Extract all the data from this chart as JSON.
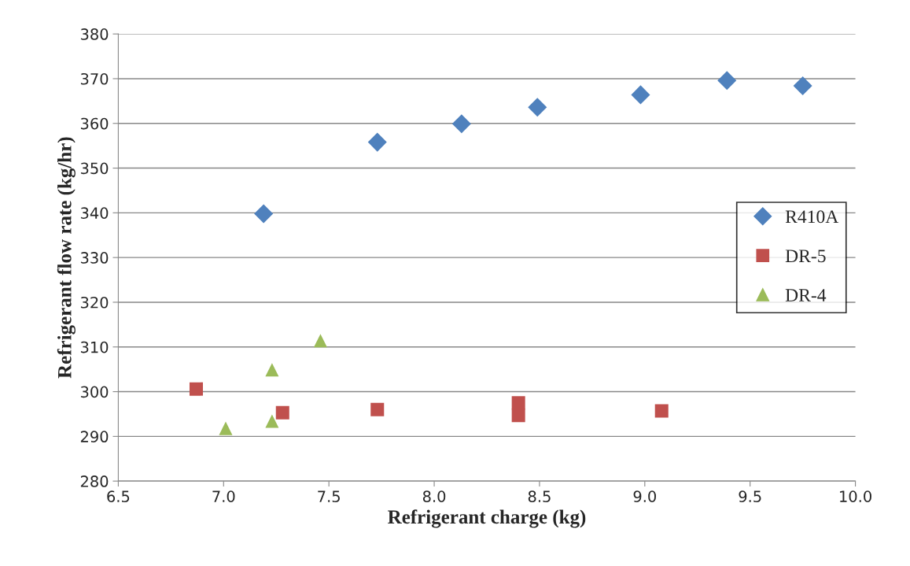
{
  "chart_data": {
    "type": "scatter",
    "xlabel": "Refrigerant charge (kg)",
    "ylabel": "Refrigerant flow rate (kg/hr)",
    "xlim": [
      6.5,
      10.0
    ],
    "xticks": [
      {
        "value": 6.5,
        "label": "6.5"
      },
      {
        "value": 7.0,
        "label": "7.0"
      },
      {
        "value": 7.5,
        "label": "7.5"
      },
      {
        "value": 8.0,
        "label": "8.0"
      },
      {
        "value": 8.5,
        "label": "8.5"
      },
      {
        "value": 9.0,
        "label": "9.0"
      },
      {
        "value": 9.5,
        "label": "9.5"
      },
      {
        "value": 10.0,
        "label": "10.0"
      }
    ],
    "ylim": [
      280,
      380
    ],
    "yticks": [
      280,
      290,
      300,
      310,
      320,
      330,
      340,
      350,
      360,
      370,
      380
    ],
    "grid": "y",
    "legend": "right",
    "series": [
      {
        "name": "R410A",
        "color": "#4f81bd",
        "marker": "diamond",
        "x": [
          7.19,
          7.73,
          8.13,
          8.49,
          8.98,
          9.39,
          9.75
        ],
        "values": [
          339.8,
          355.8,
          359.9,
          363.6,
          366.4,
          369.6,
          368.4
        ]
      },
      {
        "name": "DR-5",
        "color": "#c0504d",
        "marker": "square",
        "x": [
          6.87,
          7.28,
          7.73,
          8.4,
          8.4,
          9.08
        ],
        "values": [
          300.6,
          295.3,
          296.0,
          297.5,
          294.7,
          295.7
        ]
      },
      {
        "name": "DR-4",
        "color": "#9bbb59",
        "marker": "triangle",
        "x": [
          7.01,
          7.23,
          7.23,
          7.46
        ],
        "values": [
          291.8,
          304.9,
          293.4,
          311.4
        ]
      }
    ]
  }
}
